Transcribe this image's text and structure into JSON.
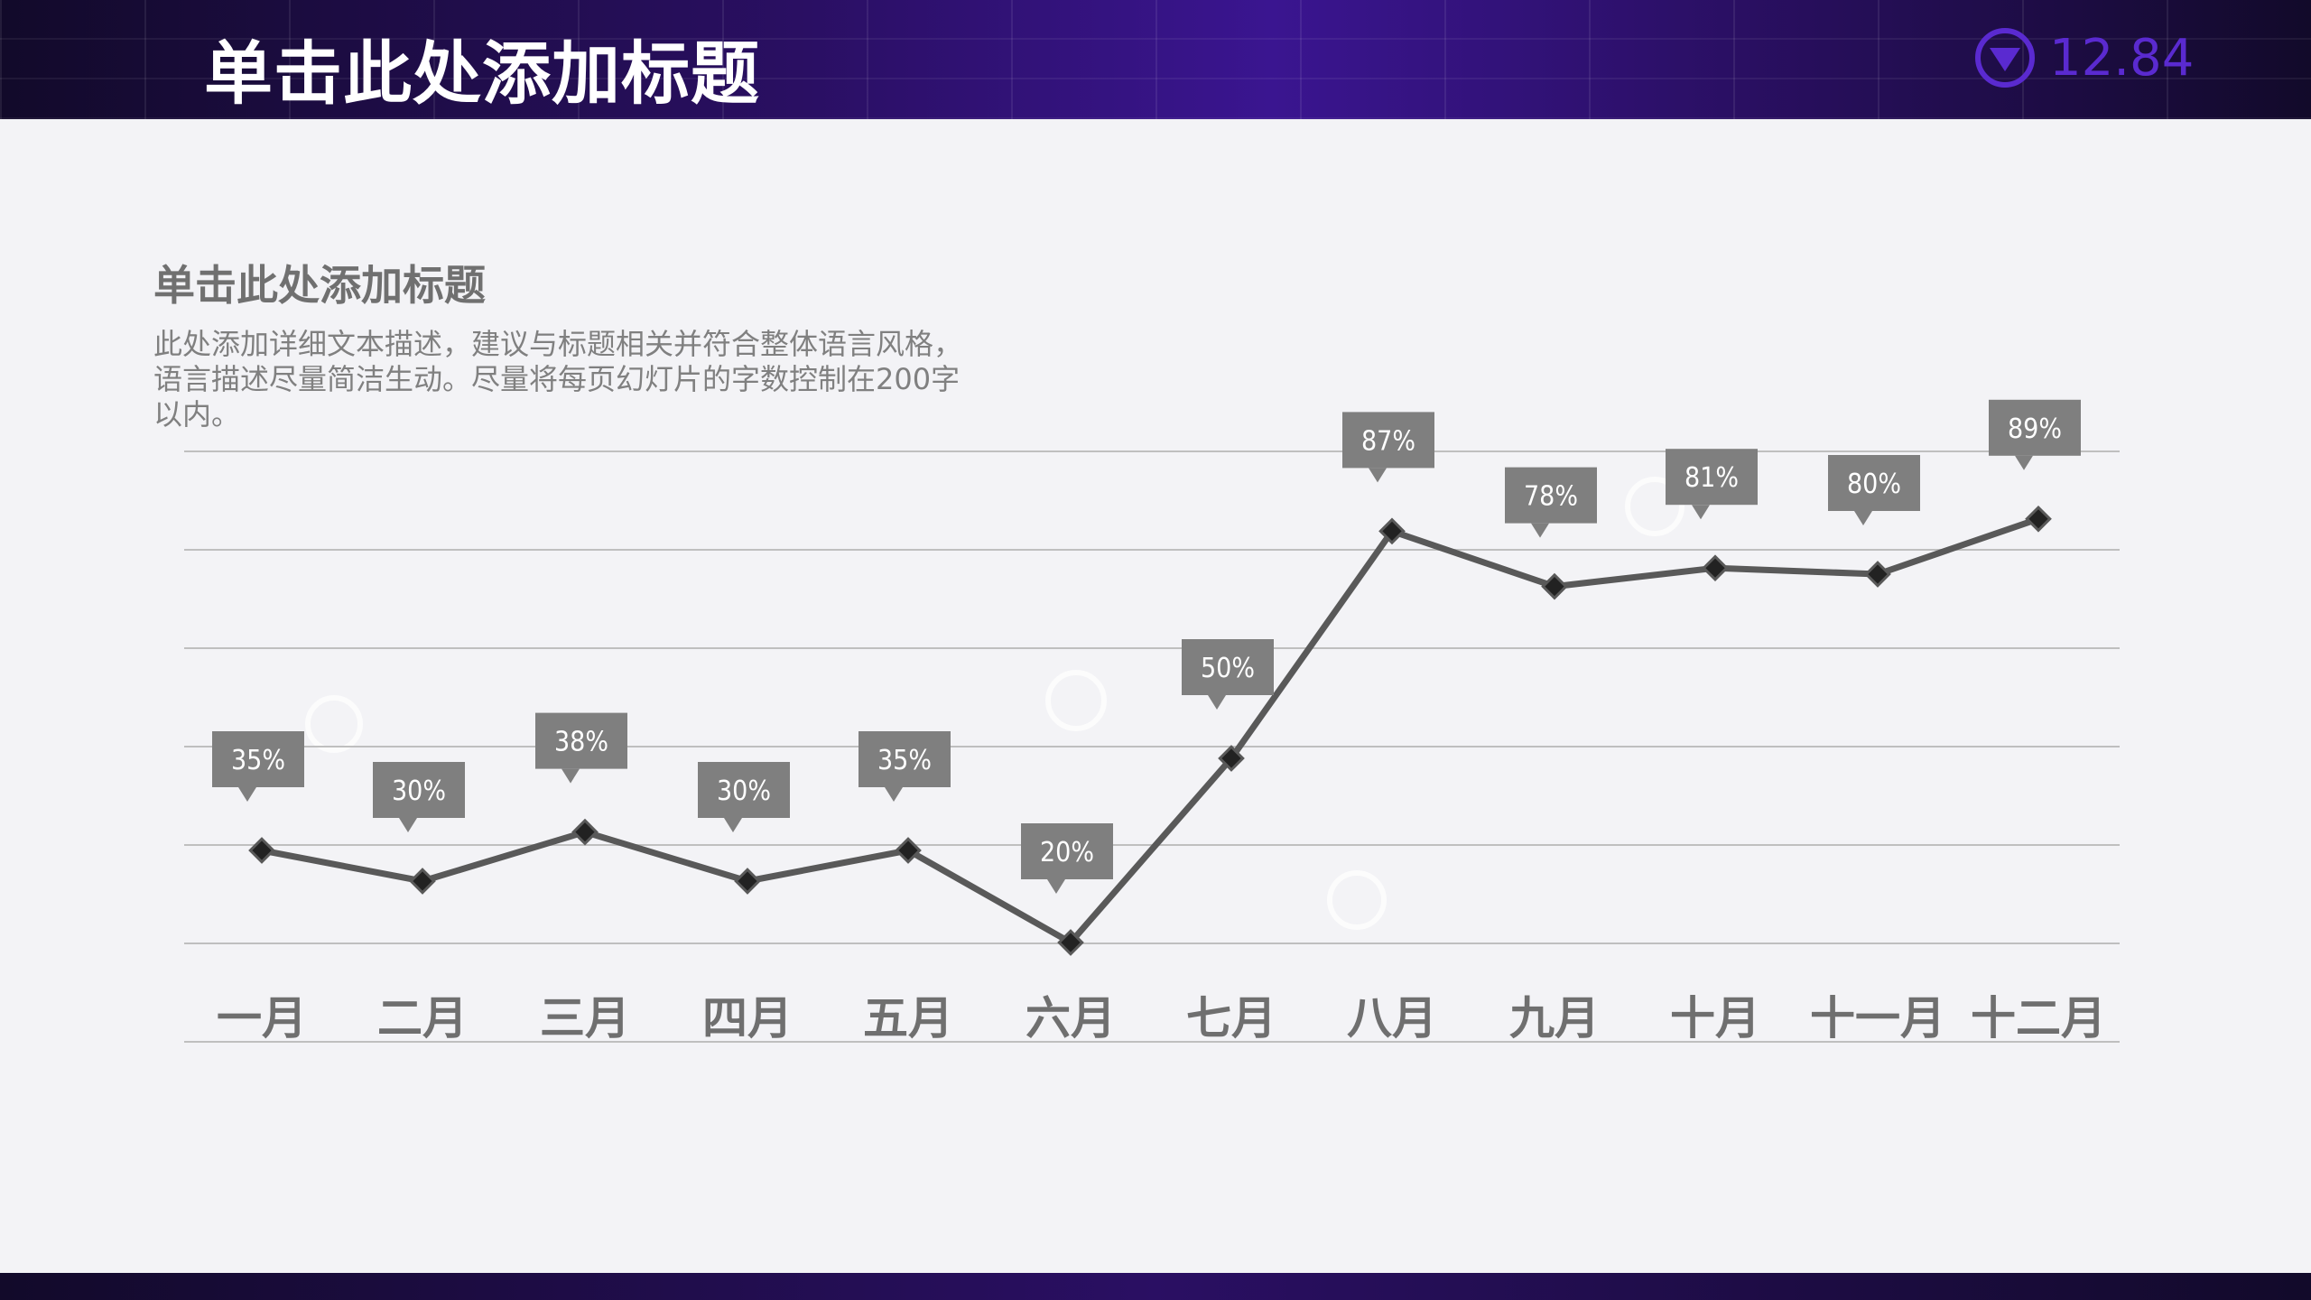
{
  "header": {
    "title": "单击此处添加标题",
    "price_value": "12.84",
    "price_icon": "down-arrow-circle-icon"
  },
  "section": {
    "title": "单击此处添加标题",
    "description": "此处添加详细文本描述，建议与标题相关并符合整体语言风格，语言描述尽量简洁生动。尽量将每页幻灯片的字数控制在200字以内。"
  },
  "colors": {
    "header_bg": "#2a0f63",
    "accent_purple": "#5a2ad0",
    "line": "#595959",
    "label_box": "#7f7f7f",
    "grid": "#bfbfbf"
  },
  "chart_data": {
    "type": "line",
    "categories": [
      "一月",
      "二月",
      "三月",
      "四月",
      "五月",
      "六月",
      "七月",
      "八月",
      "九月",
      "十月",
      "十一月",
      "十二月"
    ],
    "values": [
      35,
      30,
      38,
      30,
      35,
      20,
      50,
      87,
      78,
      81,
      80,
      89
    ],
    "data_labels": [
      "35%",
      "30%",
      "38%",
      "30%",
      "35%",
      "20%",
      "50%",
      "87%",
      "78%",
      "81%",
      "80%",
      "89%"
    ],
    "ylim": [
      20,
      100
    ],
    "grid": true,
    "legend": "none"
  }
}
